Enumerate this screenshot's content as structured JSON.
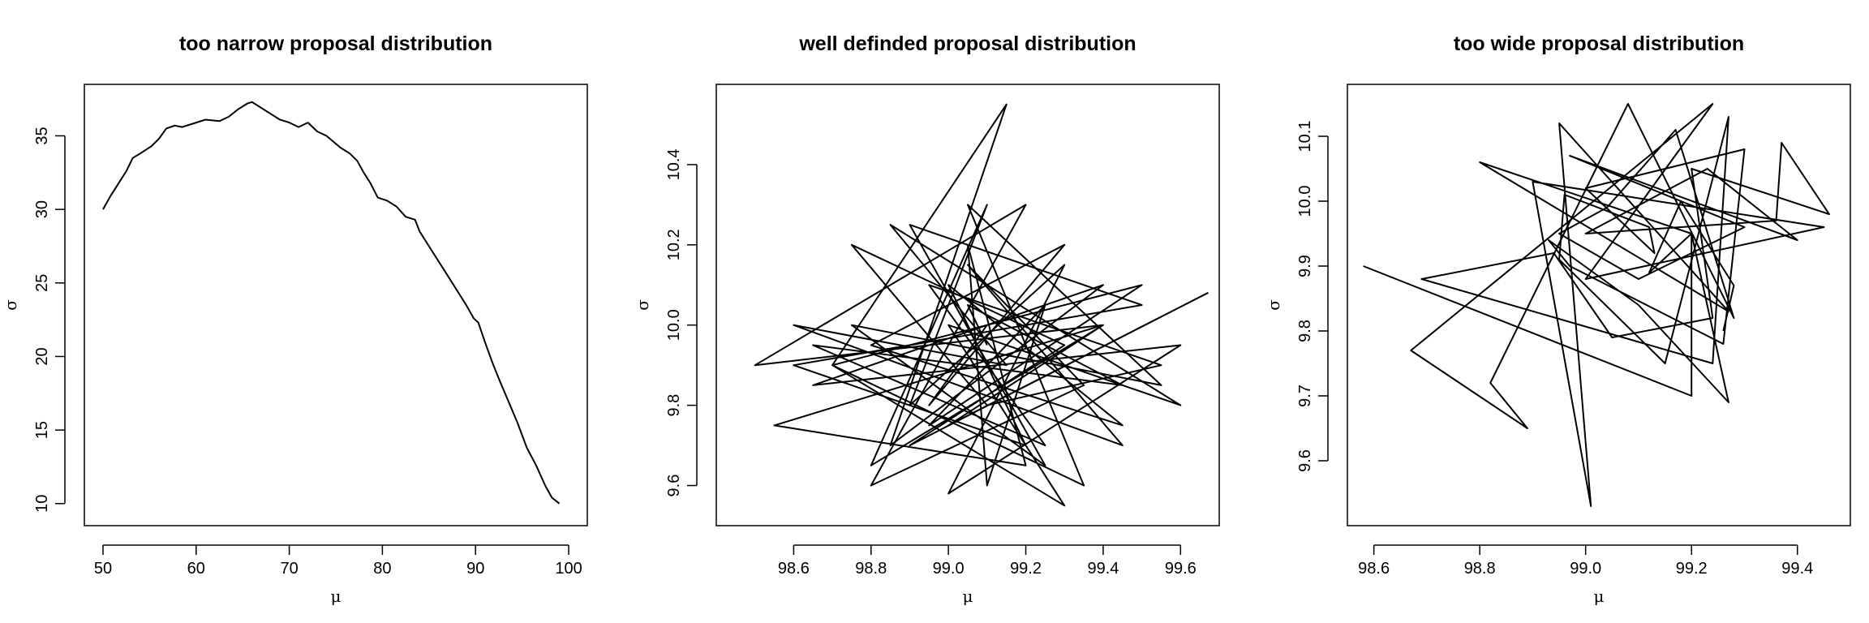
{
  "chart_data": [
    {
      "type": "line",
      "title": "too narrow proposal distribution",
      "xlabel": "μ",
      "ylabel": "σ",
      "xlim": [
        48,
        102
      ],
      "ylim": [
        8.5,
        38.5
      ],
      "xticks": [
        50,
        60,
        70,
        80,
        90,
        100
      ],
      "yticks": [
        10,
        15,
        20,
        25,
        30,
        35
      ],
      "grid": false,
      "series": [
        {
          "x": [
            50.0,
            50.8,
            51.5,
            52.5,
            53.2,
            54.0,
            55.2,
            56.0,
            56.8,
            57.7,
            58.5,
            59.5,
            61.0,
            62.5,
            63.5,
            64.5,
            65.5,
            66.0,
            67.0,
            68.0,
            69.0,
            70.0,
            71.0,
            72.0,
            73.0,
            74.0,
            75.5,
            76.5,
            77.3,
            78.0,
            78.7,
            79.5,
            80.5,
            81.5,
            82.5,
            83.5,
            84.0,
            85.0,
            86.0,
            87.0,
            88.0,
            89.0,
            89.8,
            90.3,
            91.0,
            91.8,
            92.5,
            93.5,
            94.5,
            95.5,
            96.5,
            97.5,
            98.2,
            99.0
          ],
          "y": [
            30.0,
            30.9,
            31.6,
            32.6,
            33.5,
            33.8,
            34.3,
            34.8,
            35.5,
            35.7,
            35.6,
            35.8,
            36.1,
            36.0,
            36.3,
            36.8,
            37.2,
            37.3,
            36.9,
            36.5,
            36.1,
            35.9,
            35.6,
            35.9,
            35.3,
            35.0,
            34.2,
            33.8,
            33.3,
            32.5,
            31.8,
            30.8,
            30.6,
            30.2,
            29.5,
            29.3,
            28.5,
            27.5,
            26.5,
            25.5,
            24.5,
            23.5,
            22.6,
            22.3,
            21.0,
            19.6,
            18.5,
            17.0,
            15.5,
            13.8,
            12.6,
            11.2,
            10.4,
            10.0
          ]
        }
      ]
    },
    {
      "type": "line",
      "title": "well definded proposal distribution",
      "xlabel": "μ",
      "ylabel": "σ",
      "xlim": [
        98.4,
        99.7
      ],
      "ylim": [
        9.5,
        10.6
      ],
      "xticks": [
        "98.6",
        "98.8",
        "99.0",
        "99.2",
        "99.4",
        "99.6"
      ],
      "yticks": [
        "9.6",
        "9.8",
        "10.0",
        "10.2",
        "10.4"
      ],
      "grid": false,
      "series": [
        {
          "x": [
            99.1,
            98.95,
            99.3,
            98.8,
            99.45,
            99.0,
            99.2,
            98.6,
            99.5,
            98.9,
            99.25,
            98.75,
            99.55,
            99.05,
            99.35,
            98.7,
            99.15,
            98.85,
            99.4,
            98.65,
            99.6,
            99.0,
            99.3,
            98.9,
            99.1,
            98.8,
            99.4,
            98.55,
            99.2,
            99.05,
            99.1,
            99.25,
            98.95,
            99.5,
            98.7,
            99.3,
            99.0,
            99.6,
            98.85,
            99.15,
            98.6,
            99.45,
            99.05,
            99.35,
            98.8,
            99.2,
            98.5,
            99.4,
            99.0,
            99.67,
            98.9,
            99.3,
            98.75,
            99.1,
            99.55,
            98.95,
            99.25,
            98.65,
            99.45,
            99.05,
            99.1
          ],
          "y": [
            10.0,
            9.8,
            10.2,
            9.95,
            9.75,
            10.1,
            9.7,
            9.9,
            10.05,
            10.25,
            9.65,
            10.0,
            9.85,
            10.3,
            9.6,
            9.9,
            10.55,
            9.7,
            10.1,
            9.85,
            9.95,
            9.58,
            10.15,
            9.8,
            10.3,
            9.65,
            10.0,
            9.75,
            9.65,
            10.2,
            9.6,
            10.05,
            9.75,
            10.1,
            9.9,
            9.55,
            10.0,
            9.8,
            10.25,
            9.9,
            10.0,
            9.7,
            10.15,
            9.85,
            9.6,
            10.3,
            9.9,
            10.0,
            9.75,
            10.08,
            9.7,
            9.95,
            10.2,
            9.8,
            9.9,
            10.1,
            9.7,
            9.95,
            9.85,
            10.05,
            9.95
          ]
        }
      ]
    },
    {
      "type": "line",
      "title": "too wide proposal distribution",
      "xlabel": "μ",
      "ylabel": "σ",
      "xlim": [
        98.55,
        99.5
      ],
      "ylim": [
        9.5,
        10.18
      ],
      "xticks": [
        "98.6",
        "98.8",
        "99.0",
        "99.2",
        "99.4"
      ],
      "yticks": [
        "9.6",
        "9.7",
        "9.8",
        "9.9",
        "10.0",
        "10.1"
      ],
      "grid": false,
      "series": [
        {
          "x": [
            98.58,
            99.2,
            99.2,
            98.8,
            99.27,
            98.95,
            99.01,
            98.9,
            99.45,
            99.0,
            99.24,
            98.67,
            98.89,
            98.82,
            99.08,
            99.28,
            99.17,
            99.04,
            98.95,
            99.1,
            99.3,
            98.97,
            99.4,
            99.23,
            99.0,
            99.36,
            99.37,
            99.46,
            99.2,
            99.24,
            99.05,
            98.94,
            98.69,
            99.24,
            99.27,
            99.15,
            98.95,
            98.96,
            99.12,
            99.13,
            99.0,
            99.3,
            99.26,
            98.97,
            98.93,
            99.1,
            99.27,
            99.2,
            99.12,
            99.18,
            99.28,
            99.26
          ],
          "y": [
            9.9,
            9.7,
            9.95,
            10.06,
            9.83,
            10.12,
            9.53,
            10.03,
            9.96,
            9.88,
            10.15,
            9.77,
            9.65,
            9.72,
            10.15,
            9.82,
            10.11,
            9.99,
            9.95,
            9.88,
            9.96,
            10.07,
            9.94,
            10.05,
            9.95,
            9.97,
            10.09,
            9.98,
            10.05,
            9.82,
            9.79,
            9.92,
            9.88,
            9.75,
            10.13,
            9.75,
            9.91,
            10.01,
            9.96,
            9.92,
            10.02,
            10.08,
            9.78,
            9.9,
            9.94,
            9.84,
            9.69,
            9.95,
            9.89,
            10.0,
            9.87,
            9.8
          ]
        }
      ]
    }
  ]
}
